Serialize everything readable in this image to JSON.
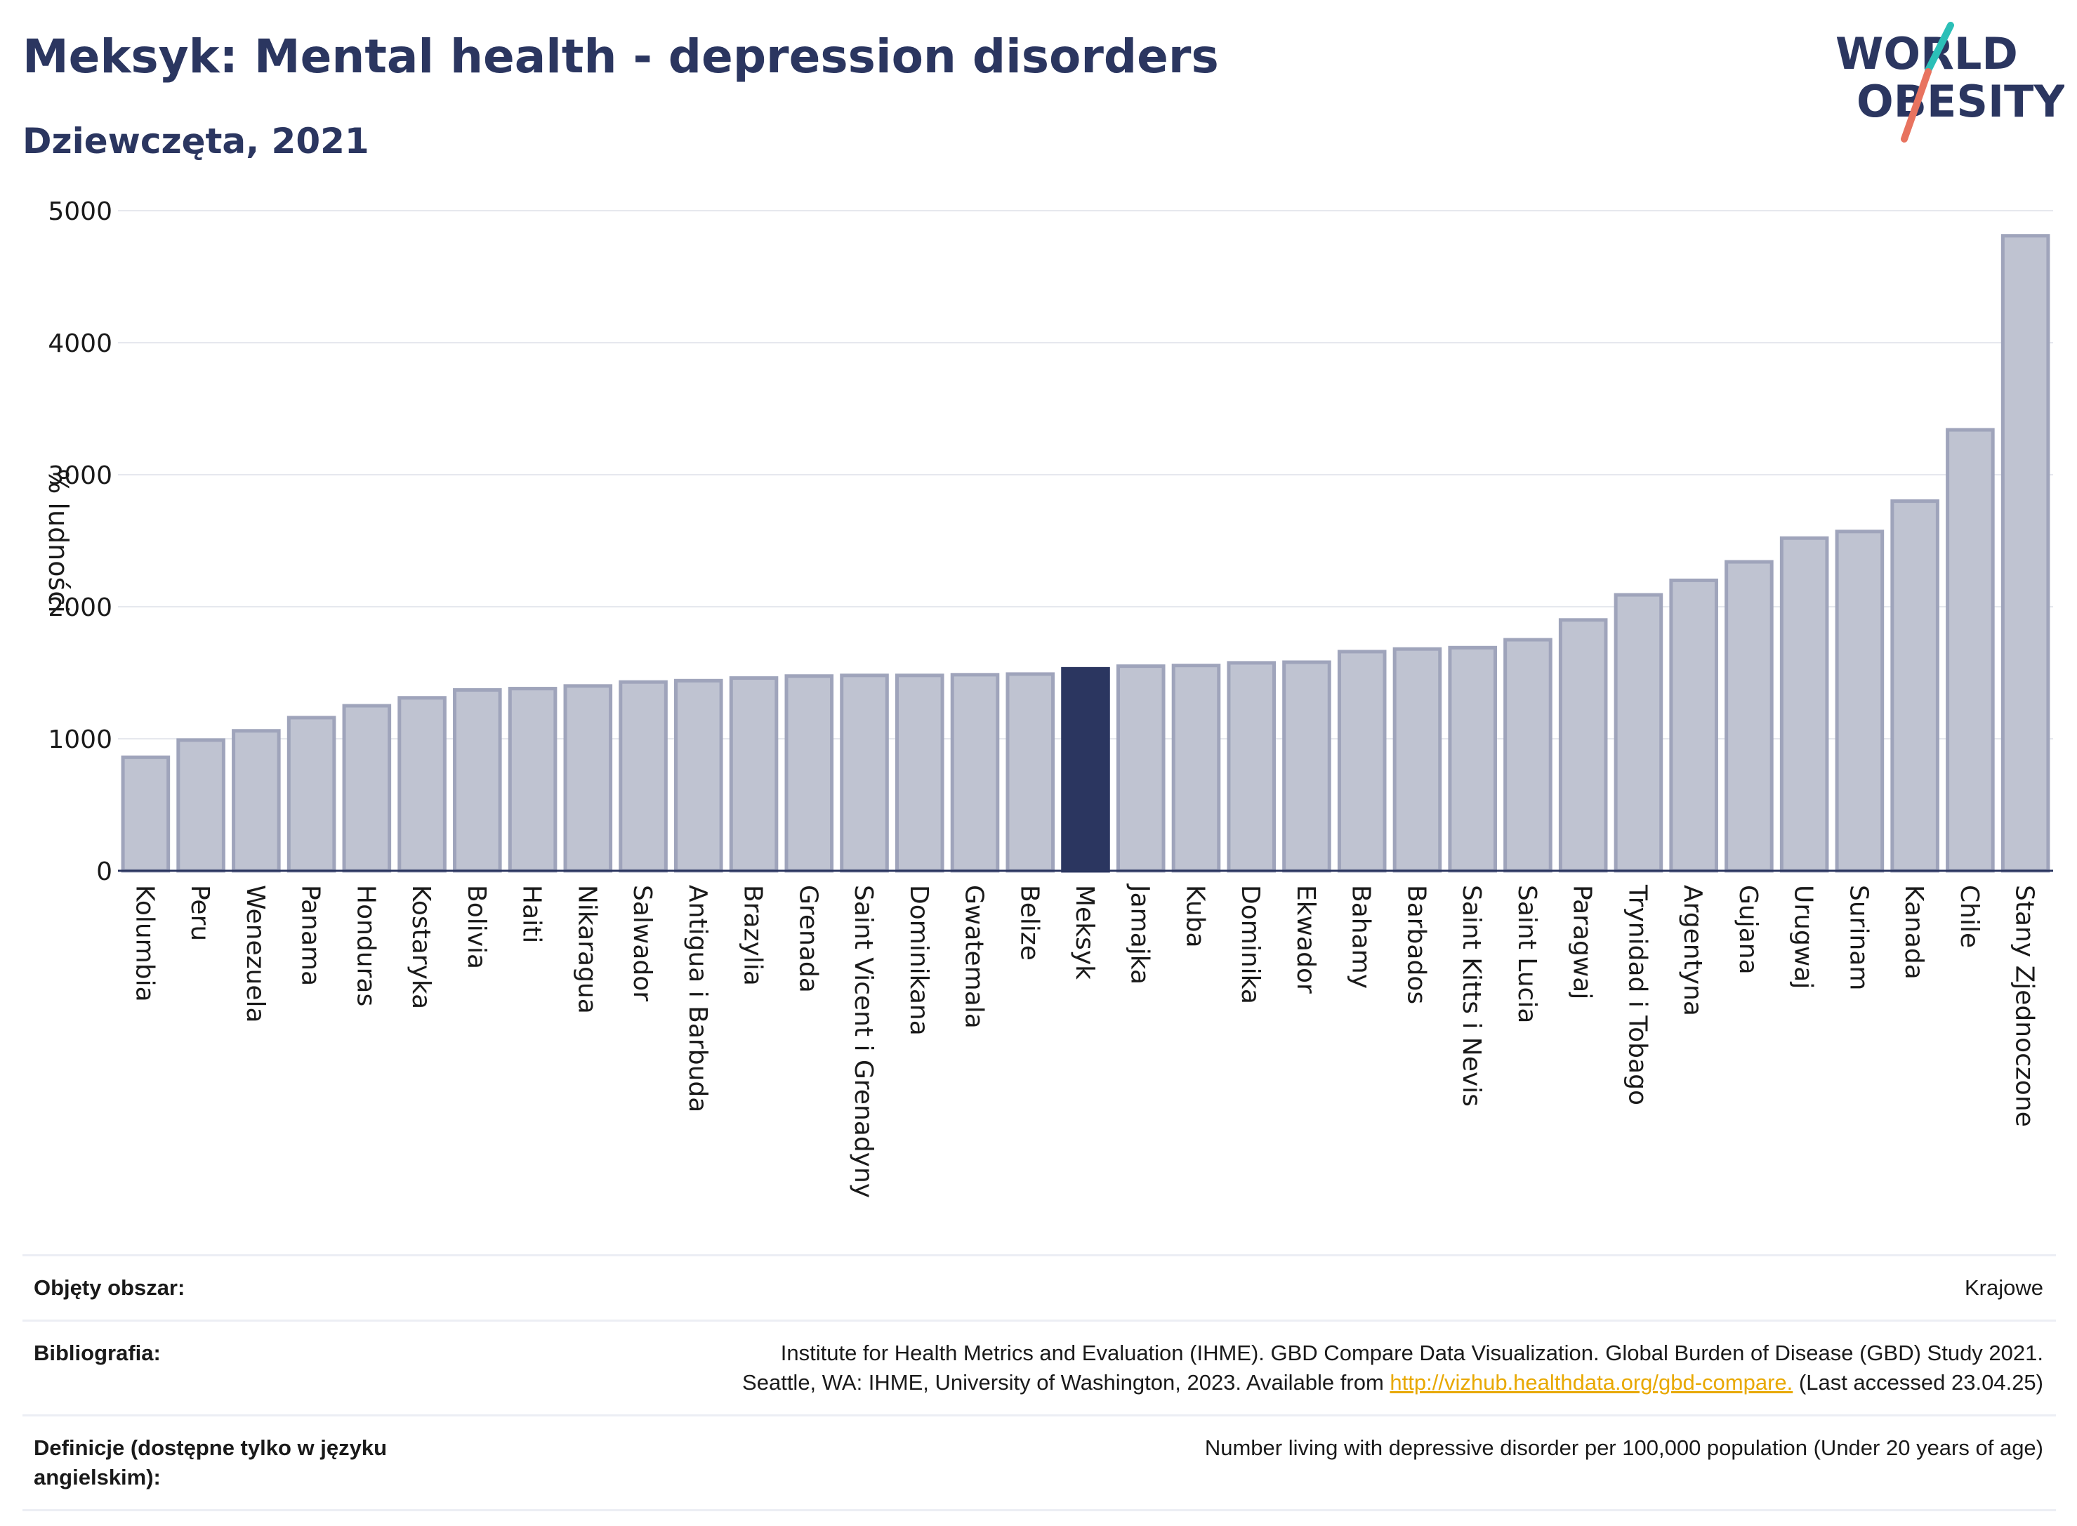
{
  "header": {
    "title": "Meksyk: Mental health - depression disorders",
    "subtitle": "Dziewczęta, 2021"
  },
  "logo": {
    "line1": "WORLD",
    "line2": "OBESITY"
  },
  "colors": {
    "bar_fill": "#bfc3d1",
    "bar_stroke": "#9fa4bb",
    "highlight_fill": "#2b3660",
    "title": "#2b3660",
    "logo_teal": "#2bbfb7",
    "logo_coral": "#e8735f"
  },
  "chart_data": {
    "type": "bar",
    "ylabel": "% ludności",
    "xlabel": "",
    "ylim": [
      0,
      5000
    ],
    "yticks": [
      0,
      1000,
      2000,
      3000,
      4000,
      5000
    ],
    "grid": true,
    "highlight": "Meksyk",
    "categories": [
      "Kolumbia",
      "Peru",
      "Wenezuela",
      "Panama",
      "Honduras",
      "Kostaryka",
      "Bolivia",
      "Haiti",
      "Nikaragua",
      "Salwador",
      "Antigua i Barbuda",
      "Brazylia",
      "Grenada",
      "Saint Vicent i Grenadyny",
      "Dominikana",
      "Gwatemala",
      "Belize",
      "Meksyk",
      "Jamajka",
      "Kuba",
      "Dominika",
      "Ekwador",
      "Bahamy",
      "Barbados",
      "Saint Kitts i Nevis",
      "Saint Lucia",
      "Paragwaj",
      "Trynidad i Tobago",
      "Argentyna",
      "Gujana",
      "Urugwaj",
      "Surinam",
      "Kanada",
      "Chile",
      "Stany Zjednoczone"
    ],
    "values": [
      860,
      990,
      1060,
      1160,
      1250,
      1310,
      1370,
      1380,
      1400,
      1430,
      1440,
      1460,
      1475,
      1480,
      1480,
      1485,
      1490,
      1530,
      1550,
      1555,
      1575,
      1580,
      1660,
      1680,
      1690,
      1750,
      1900,
      2090,
      2200,
      2340,
      2520,
      2570,
      2800,
      3340,
      4810
    ]
  },
  "footer": {
    "rows": [
      {
        "label": "Objęty obszar:",
        "value": "Krajowe"
      },
      {
        "label": "Bibliografia:",
        "value_line1": "Institute for Health Metrics and Evaluation (IHME). GBD Compare Data Visualization. Global Burden of Disease (GBD) Study 2021.",
        "value_line2_before": "Seattle, WA: IHME, University of Washington, 2023. Available from ",
        "value_link": "http://vizhub.healthdata.org/gbd-compare.",
        "value_line2_after": " (Last accessed 23.04.25)"
      },
      {
        "label": "Definicje (dostępne tylko w języku angielskim):",
        "value": "Number living with depressive disorder per 100,000 population (Under 20 years of age)"
      }
    ]
  }
}
